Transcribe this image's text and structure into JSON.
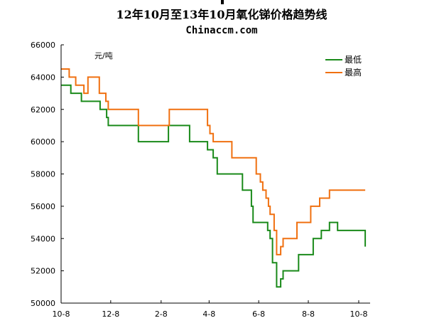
{
  "chart_data": {
    "type": "line",
    "title": "12年10月至13年10月氧化锑价格趋势线",
    "subtitle": "Chinaccm.com",
    "unit_label": "元/吨",
    "x_ticks": [
      "10-8",
      "12-8",
      "2-8",
      "4-8",
      "6-8",
      "8-8",
      "10-8"
    ],
    "x_tick_index": [
      0,
      61,
      123,
      182,
      243,
      304,
      366
    ],
    "ylim": [
      50000,
      66000
    ],
    "y_ticks": [
      50000,
      52000,
      54000,
      56000,
      58000,
      60000,
      62000,
      64000,
      66000
    ],
    "y_tick_labels": [
      "50000",
      "52000",
      "54000",
      "56000",
      "58000",
      "60000",
      "62000",
      "64000",
      "66000"
    ],
    "grid": false,
    "legend_position": "top-right",
    "series": [
      {
        "name": "最低",
        "color": "#1a8a1a",
        "points": [
          [
            0,
            63500
          ],
          [
            12,
            63500
          ],
          [
            12,
            63000
          ],
          [
            25,
            63000
          ],
          [
            25,
            62500
          ],
          [
            48,
            62500
          ],
          [
            48,
            62000
          ],
          [
            56,
            62000
          ],
          [
            56,
            61500
          ],
          [
            58,
            61500
          ],
          [
            58,
            61000
          ],
          [
            95,
            61000
          ],
          [
            95,
            60000
          ],
          [
            132,
            60000
          ],
          [
            132,
            61000
          ],
          [
            158,
            61000
          ],
          [
            158,
            60000
          ],
          [
            180,
            60000
          ],
          [
            180,
            59500
          ],
          [
            187,
            59500
          ],
          [
            187,
            59000
          ],
          [
            192,
            59000
          ],
          [
            192,
            58000
          ],
          [
            223,
            58000
          ],
          [
            223,
            57000
          ],
          [
            234,
            57000
          ],
          [
            234,
            56000
          ],
          [
            236,
            56000
          ],
          [
            236,
            55000
          ],
          [
            254,
            55000
          ],
          [
            254,
            54500
          ],
          [
            257,
            54500
          ],
          [
            257,
            54000
          ],
          [
            260,
            54000
          ],
          [
            260,
            52500
          ],
          [
            265,
            52500
          ],
          [
            265,
            51000
          ],
          [
            270,
            51000
          ],
          [
            270,
            51500
          ],
          [
            273,
            51500
          ],
          [
            273,
            52000
          ],
          [
            292,
            52000
          ],
          [
            292,
            53000
          ],
          [
            310,
            53000
          ],
          [
            310,
            54000
          ],
          [
            320,
            54000
          ],
          [
            320,
            54500
          ],
          [
            330,
            54500
          ],
          [
            330,
            55000
          ],
          [
            340,
            55000
          ],
          [
            340,
            54500
          ],
          [
            374,
            54500
          ],
          [
            374,
            53500
          ]
        ]
      },
      {
        "name": "最高",
        "color": "#f07010",
        "points": [
          [
            0,
            64500
          ],
          [
            10,
            64500
          ],
          [
            10,
            64000
          ],
          [
            18,
            64000
          ],
          [
            18,
            63500
          ],
          [
            28,
            63500
          ],
          [
            28,
            63000
          ],
          [
            33,
            63000
          ],
          [
            33,
            64000
          ],
          [
            47,
            64000
          ],
          [
            47,
            63000
          ],
          [
            55,
            63000
          ],
          [
            55,
            62500
          ],
          [
            58,
            62500
          ],
          [
            58,
            62000
          ],
          [
            95,
            62000
          ],
          [
            95,
            61000
          ],
          [
            133,
            61000
          ],
          [
            133,
            62000
          ],
          [
            180,
            62000
          ],
          [
            180,
            61000
          ],
          [
            183,
            61000
          ],
          [
            183,
            60500
          ],
          [
            187,
            60500
          ],
          [
            187,
            60000
          ],
          [
            210,
            60000
          ],
          [
            210,
            59000
          ],
          [
            240,
            59000
          ],
          [
            240,
            58000
          ],
          [
            245,
            58000
          ],
          [
            245,
            57500
          ],
          [
            248,
            57500
          ],
          [
            248,
            57000
          ],
          [
            252,
            57000
          ],
          [
            252,
            56500
          ],
          [
            255,
            56500
          ],
          [
            255,
            56000
          ],
          [
            257,
            56000
          ],
          [
            257,
            55500
          ],
          [
            262,
            55500
          ],
          [
            262,
            54500
          ],
          [
            265,
            54500
          ],
          [
            265,
            53000
          ],
          [
            270,
            53000
          ],
          [
            270,
            53500
          ],
          [
            273,
            53500
          ],
          [
            273,
            54000
          ],
          [
            290,
            54000
          ],
          [
            290,
            55000
          ],
          [
            307,
            55000
          ],
          [
            307,
            56000
          ],
          [
            318,
            56000
          ],
          [
            318,
            56500
          ],
          [
            330,
            56500
          ],
          [
            330,
            57000
          ],
          [
            374,
            57000
          ]
        ]
      }
    ]
  }
}
